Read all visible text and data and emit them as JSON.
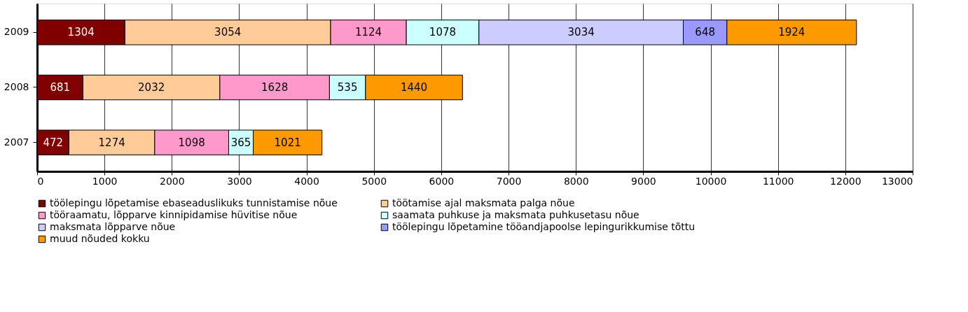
{
  "chart_data": {
    "type": "bar",
    "orientation": "horizontal",
    "stacked": true,
    "data_labels": true,
    "categories": [
      "2009",
      "2008",
      "2007"
    ],
    "series": [
      {
        "name": "töölepingu lõpetamise ebaseaduslikuks tunnistamise nõue",
        "color": "#800000",
        "values": [
          1304,
          681,
          472
        ]
      },
      {
        "name": "töötamise ajal maksmata palga nõue",
        "color": "#ffcc99",
        "values": [
          3054,
          2032,
          1274
        ]
      },
      {
        "name": "tööraamatu, lõpparve kinnipidamise hüvitise nõue",
        "color": "#ff99cc",
        "values": [
          1124,
          1628,
          1098
        ]
      },
      {
        "name": "saamata puhkuse ja maksmata puhkusetasu nõue",
        "color": "#ccffff",
        "values": [
          1078,
          535,
          365
        ]
      },
      {
        "name": "maksmata lõpparve nõue",
        "color": "#ccccff",
        "values": [
          3034,
          null,
          null
        ]
      },
      {
        "name": "töölepingu lõpetamine tööandjapoolse lepingurikkumise tõttu",
        "color": "#9999ff",
        "values": [
          648,
          null,
          null
        ]
      },
      {
        "name": "muud nõuded kokku",
        "color": "#ff9900",
        "values": [
          1924,
          1440,
          1021
        ]
      }
    ],
    "xlim": [
      0,
      13000
    ],
    "xticks": [
      0,
      1000,
      2000,
      3000,
      4000,
      5000,
      6000,
      7000,
      8000,
      9000,
      10000,
      11000,
      12000,
      13000
    ],
    "grid": "x",
    "legend": "bottom"
  }
}
